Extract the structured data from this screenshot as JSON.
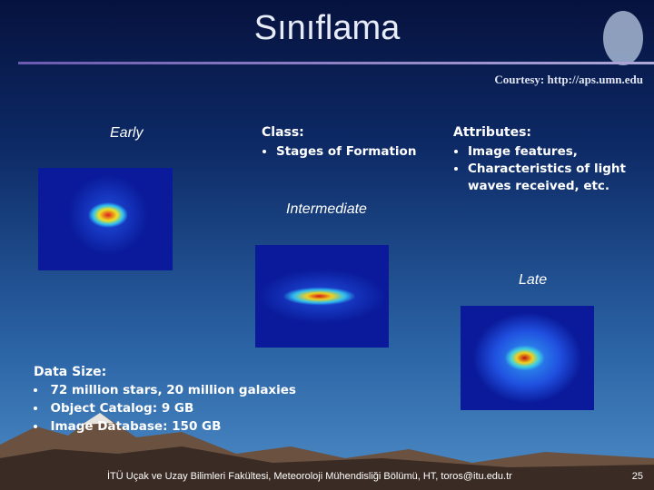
{
  "header": {
    "title": "Sınıflama",
    "courtesy": "Courtesy: http://aps.umn.edu"
  },
  "labels": {
    "early": "Early",
    "intermediate": "Intermediate",
    "late": "Late"
  },
  "class": {
    "heading": "Class:",
    "items": [
      "Stages of Formation"
    ]
  },
  "attributes": {
    "heading": "Attributes:",
    "items": [
      "Image features,",
      "Characteristics of light waves received, etc."
    ]
  },
  "data_size": {
    "heading": "Data Size:",
    "items": [
      "72 million stars, 20 million galaxies",
      "Object Catalog: 9 GB",
      "Image Database: 150 GB"
    ]
  },
  "footer": {
    "text": "İTÜ Uçak ve Uzay Bilimleri Fakültesi, Meteoroloji Mühendisliği Bölümü, HT, toros@itu.edu.tr",
    "page": 25
  }
}
